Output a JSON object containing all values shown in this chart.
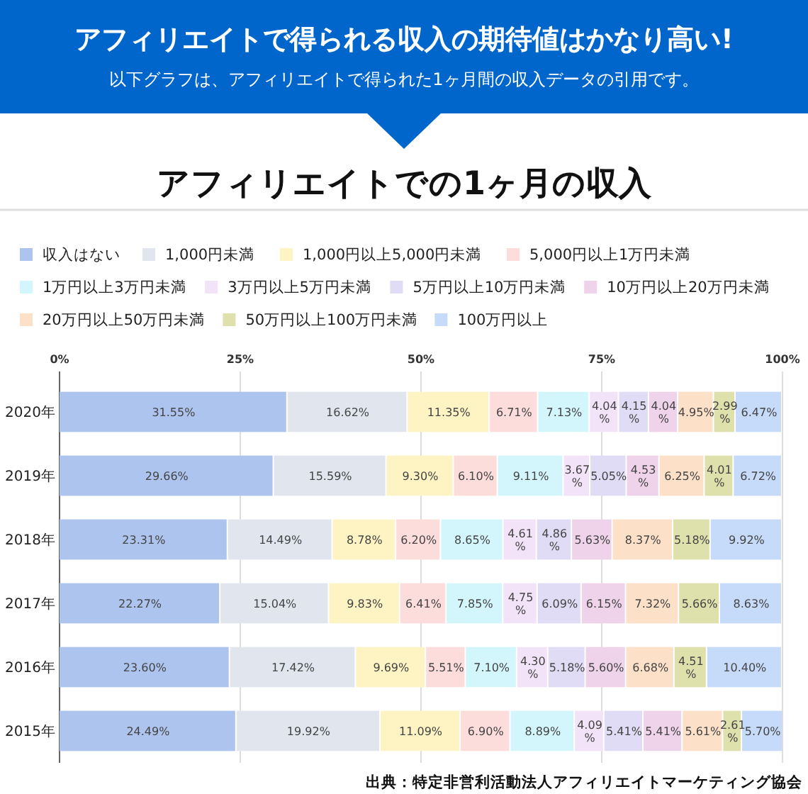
{
  "chart_data": {
    "type": "bar",
    "orientation": "horizontal",
    "stacked": true,
    "title": "アフィリエイトでの1ヶ月の収入",
    "annotations": [
      "アフィリエイトで得られる収入の期待値はかなり高い!",
      "以下グラフは、アフィリエイトで得られた1ヶ月間の収入データの引用です。",
      "出典：特定非営利活動法人アフィリエイトマーケティング協会"
    ],
    "categories": [
      "2020年",
      "2019年",
      "2018年",
      "2017年",
      "2016年",
      "2015年"
    ],
    "xlim": [
      0,
      100
    ],
    "xticks": [
      {
        "value": 0,
        "label": "0%"
      },
      {
        "value": 25,
        "label": "25%"
      },
      {
        "value": 50,
        "label": "50%"
      },
      {
        "value": 75,
        "label": "75%"
      },
      {
        "value": 100,
        "label": "100%"
      }
    ],
    "grid": "x",
    "legend": "top",
    "series": [
      {
        "name": "収入はない",
        "color": "#adc4ee",
        "values": [
          31.55,
          29.66,
          23.31,
          22.27,
          23.6,
          24.49
        ],
        "value_labels": [
          "31.55%",
          "29.66%",
          "23.31%",
          "22.27%",
          "23.60%",
          "24.49%"
        ]
      },
      {
        "name": "1,000円未満",
        "color": "#e1e6ee",
        "values": [
          16.62,
          15.59,
          14.49,
          15.04,
          17.42,
          19.92
        ],
        "value_labels": [
          "16.62%",
          "15.59%",
          "14.49%",
          "15.04%",
          "17.42%",
          "19.92%"
        ]
      },
      {
        "name": "1,000円以上5,000円未満",
        "color": "#fdf3c3",
        "values": [
          11.35,
          9.3,
          8.78,
          9.83,
          9.69,
          11.09
        ],
        "value_labels": [
          "11.35%",
          "9.30%",
          "8.78%",
          "9.83%",
          "9.69%",
          "11.09%"
        ]
      },
      {
        "name": "5,000円以上1万円未満",
        "color": "#fddcdc",
        "values": [
          6.71,
          6.1,
          6.2,
          6.41,
          5.51,
          6.9
        ],
        "value_labels": [
          "6.71%",
          "6.10%",
          "6.20%",
          "6.41%",
          "5.51%",
          "6.90%"
        ]
      },
      {
        "name": "1万円以上3万円未満",
        "color": "#d3f6fc",
        "values": [
          7.13,
          9.11,
          8.65,
          7.85,
          7.1,
          8.89
        ],
        "value_labels": [
          "7.13%",
          "9.11%",
          "8.65%",
          "7.85%",
          "7.10%",
          "8.89%"
        ]
      },
      {
        "name": "3万円以上5万円未満",
        "color": "#f3e3f8",
        "values": [
          4.04,
          3.67,
          4.61,
          4.75,
          4.3,
          4.09
        ],
        "value_labels": [
          "4.04%",
          "3.67%",
          "4.61%",
          "4.75%",
          "4.30%",
          "4.09%"
        ]
      },
      {
        "name": "5万円以上10万円未満",
        "color": "#e0dcf6",
        "values": [
          4.15,
          5.05,
          4.86,
          6.09,
          5.18,
          5.41
        ],
        "value_labels": [
          "4.15%",
          "5.05%",
          "4.86%",
          "6.09%",
          "5.18%",
          "5.41%"
        ]
      },
      {
        "name": "10万円以上20万円未満",
        "color": "#efd3ea",
        "values": [
          4.04,
          4.53,
          5.63,
          6.15,
          5.6,
          5.41
        ],
        "value_labels": [
          "4.04%",
          "4.53%",
          "5.63%",
          "6.15%",
          "5.60%",
          "5.41%"
        ]
      },
      {
        "name": "20万円以上50万円未満",
        "color": "#fde0c8",
        "values": [
          4.95,
          6.25,
          8.37,
          7.32,
          6.68,
          5.61
        ],
        "value_labels": [
          "4.95%",
          "6.25%",
          "8.37%",
          "7.32%",
          "6.68%",
          "5.61%"
        ]
      },
      {
        "name": "50万円以上100万円未満",
        "color": "#dee1ac",
        "values": [
          2.99,
          4.01,
          5.18,
          5.66,
          4.51,
          2.61
        ],
        "value_labels": [
          "2.99%",
          "4.01%",
          "5.18%",
          "5.66%",
          "4.51%",
          "2.61%"
        ]
      },
      {
        "name": "100万円以上",
        "color": "#c6dbfa",
        "values": [
          6.47,
          6.72,
          9.92,
          8.63,
          10.4,
          5.7
        ],
        "value_labels": [
          "6.47%",
          "6.72%",
          "9.92%",
          "8.63%",
          "10.40%",
          "5.70%"
        ]
      }
    ]
  }
}
